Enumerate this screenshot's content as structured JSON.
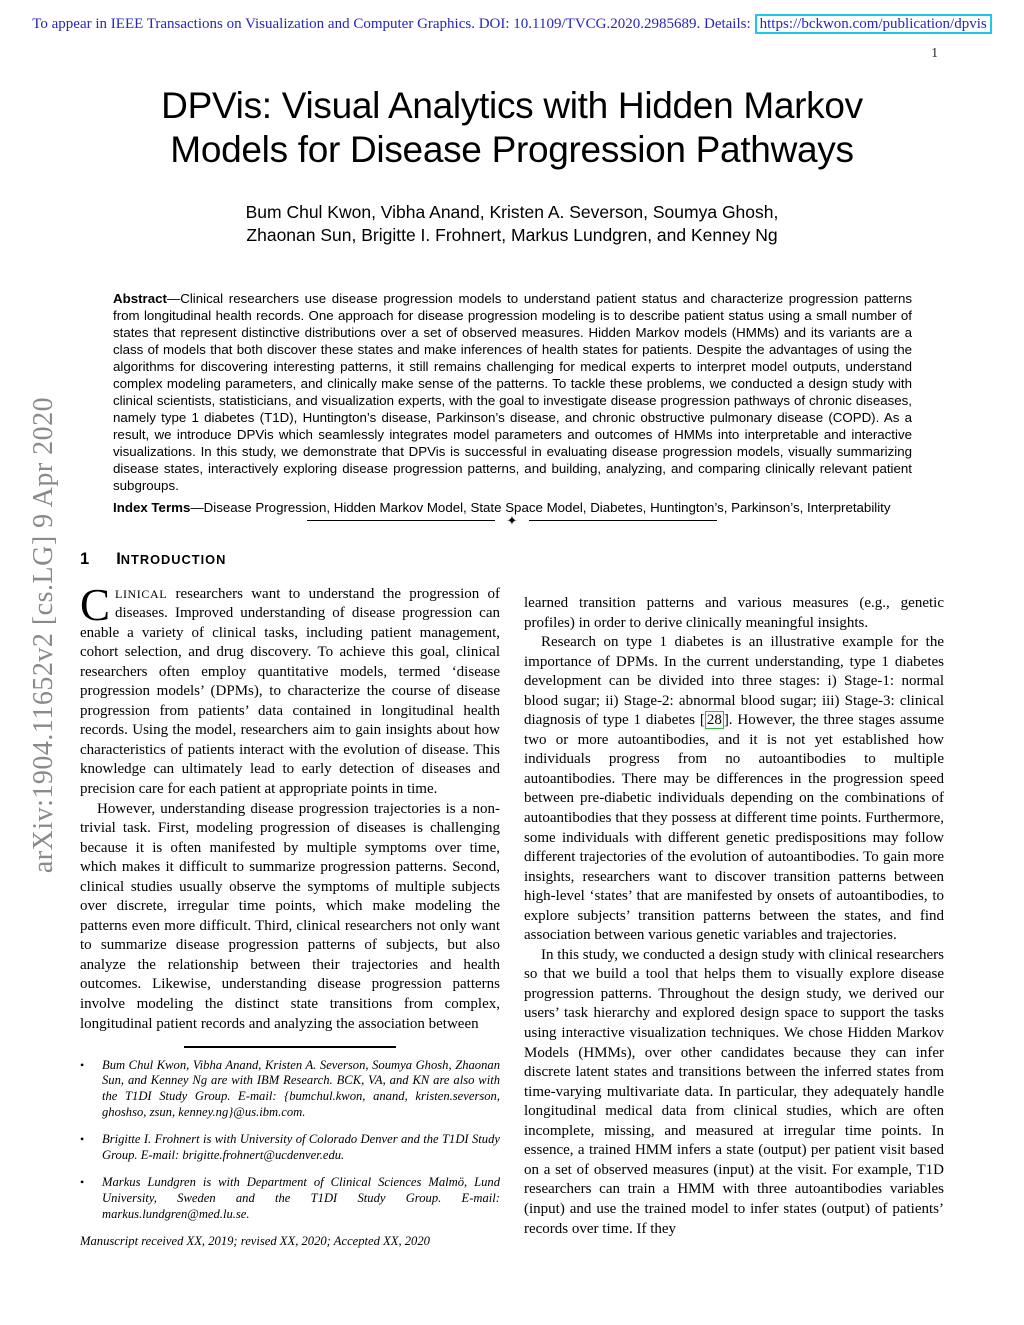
{
  "header": {
    "notice": "To appear in IEEE Transactions on Visualization and Computer Graphics. DOI: 10.1109/TVCG.2020.2985689. Details:",
    "link": "https://bckwon.com/publication/dpvis",
    "page_number": "1"
  },
  "watermark": {
    "text": "arXiv:1904.11652v2  [cs.LG]  9 Apr 2020"
  },
  "title": {
    "line1": "DPVis: Visual Analytics with Hidden Markov",
    "line2": "Models for Disease Progression Pathways"
  },
  "authors": {
    "line1": "Bum Chul Kwon, Vibha Anand, Kristen A. Severson, Soumya Ghosh,",
    "line2": "Zhaonan Sun, Brigitte I. Frohnert, Markus Lundgren, and Kenney Ng"
  },
  "abstract": {
    "label": "Abstract",
    "body": "—Clinical researchers use disease progression models to understand patient status and characterize progression patterns from longitudinal health records. One approach for disease progression modeling is to describe patient status using a small number of states that represent distinctive distributions over a set of observed measures. Hidden Markov models (HMMs) and its variants are a class of models that both discover these states and make inferences of health states for patients. Despite the advantages of using the algorithms for discovering interesting patterns, it still remains challenging for medical experts to interpret model outputs, understand complex modeling parameters, and clinically make sense of the patterns. To tackle these problems, we conducted a design study with clinical scientists, statisticians, and visualization experts, with the goal to investigate disease progression pathways of chronic diseases, namely type 1 diabetes (T1D), Huntington’s disease, Parkinson’s disease, and chronic obstructive pulmonary disease (COPD). As a result, we introduce DPVis which seamlessly integrates model parameters and outcomes of HMMs into interpretable and interactive visualizations. In this study, we demonstrate that DPVis is successful in evaluating disease progression models, visually summarizing disease states, interactively exploring disease progression patterns, and building, analyzing, and comparing clinically relevant patient subgroups."
  },
  "index_terms": {
    "label": "Index Terms",
    "body": "—Disease Progression, Hidden Markov Model, State Space Model, Diabetes, Huntington’s, Parkinson’s, Interpretability"
  },
  "divider": {
    "symbol": "✦"
  },
  "intro": {
    "number": "1",
    "heading_initial": "I",
    "heading_rest": "NTRODUCTION",
    "dropcap": "C",
    "smallcaps": "LINICAL",
    "p1_rest": " researchers want to understand the progression of diseases. Improved understanding of disease progression can enable a variety of clinical tasks, including patient management, cohort selection, and drug discovery. To achieve this goal, clinical researchers often employ quantitative models, termed ‘disease progression models’ (DPMs), to characterize the course of disease progression from patients’ data contained in longitudinal health records. Using the model, researchers aim to gain insights about how characteristics of patients interact with the evolution of disease. This knowledge can ultimately lead to early detection of diseases and precision care for each patient at appropriate points in time.",
    "p2": "However, understanding disease progression trajectories is a non-trivial task. First, modeling progression of diseases is challenging because it is often manifested by multiple symptoms over time, which makes it difficult to summarize progression patterns. Second, clinical studies usually observe the symptoms of multiple subjects over discrete, irregular time points, which make modeling the patterns even more difficult. Third, clinical researchers not only want to summarize disease progression patterns of subjects, but also analyze the relationship between their trajectories and health outcomes. Likewise, understanding disease progression patterns involve modeling the distinct state transitions from complex, longitudinal patient records and analyzing the association between"
  },
  "right_col": {
    "p1": "learned transition patterns and various measures (e.g., genetic profiles) in order to derive clinically meaningful insights.",
    "p2_pre": "Research on type 1 diabetes is an illustrative example for the importance of DPMs. In the current understanding, type 1 diabetes development can be divided into three stages: i) Stage-1: normal blood sugar; ii) Stage-2: abnormal blood sugar; iii) Stage-3: clinical diagnosis of type 1 diabetes [",
    "p2_cite": "28",
    "p2_post": "]. However, the three stages assume two or more autoantibodies, and it is not yet established how individuals progress from no autoantibodies to multiple autoantibodies. There may be differences in the progression speed between pre-diabetic individuals depending on the combinations of autoantibodies that they possess at different time points. Furthermore, some individuals with different genetic predispositions may follow different trajectories of the evolution of autoantibodies. To gain more insights, researchers want to discover transition patterns between high-level ‘states’ that are manifested by onsets of autoantibodies, to explore subjects’ transition patterns between the states, and find association between various genetic variables and trajectories.",
    "p3": "In this study, we conducted a design study with clinical researchers so that we build a tool that helps them to visually explore disease progression patterns. Throughout the design study, we derived our users’ task hierarchy and explored design space to support the tasks using interactive visualization techniques. We chose Hidden Markov Models (HMMs), over other candidates because they can infer discrete latent states and transitions between the inferred states from time-varying multivariate data. In particular, they adequately handle longitudinal medical data from clinical studies, which are often incomplete, missing, and measured at irregular time points. In essence, a trained HMM infers a state (output) per patient visit based on a set of observed measures (input) at the visit. For example, T1D researchers can train a HMM with three autoantibodies variables (input) and use the trained model to infer states (output) of patients’ records over time. If they"
  },
  "footnotes": {
    "bullet": "•",
    "items": [
      "Bum Chul Kwon, Vibha Anand, Kristen A. Severson, Soumya Ghosh, Zhaonan Sun, and Kenney Ng are with IBM Research. BCK, VA, and KN are also with the T1DI Study Group. E-mail: {bumchul.kwon, anand, kristen.severson, ghoshso, zsun, kenney.ng}@us.ibm.com.",
      "Brigitte I. Frohnert is with University of Colorado Denver and the T1DI Study Group. E-mail: brigitte.frohnert@ucdenver.edu.",
      "Markus Lundgren is with Department of Clinical Sciences Malmö, Lund University, Sweden and the T1DI Study Group. E-mail: markus.lundgren@med.lu.se."
    ],
    "manuscript": "Manuscript received XX, 2019; revised XX, 2020; Accepted XX, 2020"
  },
  "colors": {
    "header_blue": "#2626bd",
    "link_box_cyan": "#1ec8e8",
    "cite_box_green": "#35b44e",
    "watermark_gray": "#8a8a8a"
  }
}
